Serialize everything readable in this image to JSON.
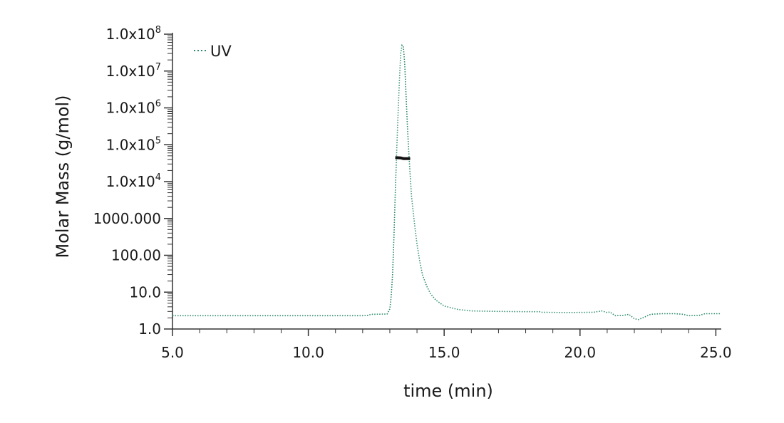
{
  "chart_data": {
    "type": "line",
    "title": "",
    "xlabel": "time (min)",
    "ylabel": "Molar Mass (g/mol)",
    "xlim": [
      5.0,
      25.2
    ],
    "ylim": [
      1.0,
      100000000.0
    ],
    "yscale": "log",
    "x_ticks": [
      5.0,
      10.0,
      15.0,
      20.0,
      25.0
    ],
    "x_tick_labels": [
      "5.0",
      "10.0",
      "15.0",
      "20.0",
      "25.0"
    ],
    "y_ticks": [
      1,
      10,
      100,
      1000,
      10000,
      100000,
      1000000,
      10000000,
      100000000
    ],
    "y_tick_labels": [
      {
        "base": "1.0",
        "exp": ""
      },
      {
        "base": "10.0",
        "exp": ""
      },
      {
        "base": "100.00",
        "exp": ""
      },
      {
        "base": "1000.000",
        "exp": ""
      },
      {
        "base": "1.0x10",
        "exp": "4"
      },
      {
        "base": "1.0x10",
        "exp": "5"
      },
      {
        "base": "1.0x10",
        "exp": "6"
      },
      {
        "base": "1.0x10",
        "exp": "7"
      },
      {
        "base": "1.0x10",
        "exp": "8"
      }
    ],
    "grid": false,
    "legend_position": "top-left",
    "series": [
      {
        "name": "UV",
        "color": "#2e8b6e",
        "style": "dotted",
        "points": [
          [
            5.0,
            2.3
          ],
          [
            6.0,
            2.3
          ],
          [
            8.0,
            2.3
          ],
          [
            10.0,
            2.3
          ],
          [
            12.0,
            2.3
          ],
          [
            12.2,
            2.35
          ],
          [
            12.3,
            2.5
          ],
          [
            12.9,
            2.55
          ],
          [
            13.0,
            3.5
          ],
          [
            13.05,
            8
          ],
          [
            13.1,
            30
          ],
          [
            13.15,
            300
          ],
          [
            13.2,
            5000
          ],
          [
            13.25,
            60000
          ],
          [
            13.3,
            600000
          ],
          [
            13.35,
            5000000
          ],
          [
            13.4,
            30000000
          ],
          [
            13.45,
            50000000
          ],
          [
            13.5,
            45000000
          ],
          [
            13.55,
            15000000
          ],
          [
            13.6,
            2000000
          ],
          [
            13.65,
            300000
          ],
          [
            13.7,
            60000
          ],
          [
            13.75,
            15000
          ],
          [
            13.8,
            4000
          ],
          [
            13.9,
            800
          ],
          [
            14.0,
            200
          ],
          [
            14.1,
            70
          ],
          [
            14.2,
            30
          ],
          [
            14.35,
            15
          ],
          [
            14.5,
            9
          ],
          [
            14.7,
            6
          ],
          [
            15.0,
            4.2
          ],
          [
            15.5,
            3.4
          ],
          [
            16.0,
            3.1
          ],
          [
            17.0,
            3.0
          ],
          [
            18.0,
            2.95
          ],
          [
            18.5,
            2.95
          ],
          [
            18.6,
            2.85
          ],
          [
            19.5,
            2.8
          ],
          [
            20.5,
            2.85
          ],
          [
            20.8,
            3.1
          ],
          [
            21.0,
            2.8
          ],
          [
            21.1,
            2.9
          ],
          [
            21.3,
            2.3
          ],
          [
            21.6,
            2.35
          ],
          [
            21.8,
            2.5
          ],
          [
            22.0,
            1.9
          ],
          [
            22.15,
            1.8
          ],
          [
            22.3,
            2.0
          ],
          [
            22.6,
            2.5
          ],
          [
            23.0,
            2.6
          ],
          [
            23.5,
            2.6
          ],
          [
            23.8,
            2.5
          ],
          [
            24.0,
            2.3
          ],
          [
            24.4,
            2.35
          ],
          [
            24.6,
            2.6
          ],
          [
            25.2,
            2.6
          ]
        ]
      }
    ],
    "markers": [
      {
        "style": "solid",
        "color": "#111111",
        "points": [
          [
            13.2,
            45000
          ],
          [
            13.4,
            44000
          ],
          [
            13.5,
            42000
          ],
          [
            13.75,
            42000
          ]
        ]
      }
    ]
  }
}
